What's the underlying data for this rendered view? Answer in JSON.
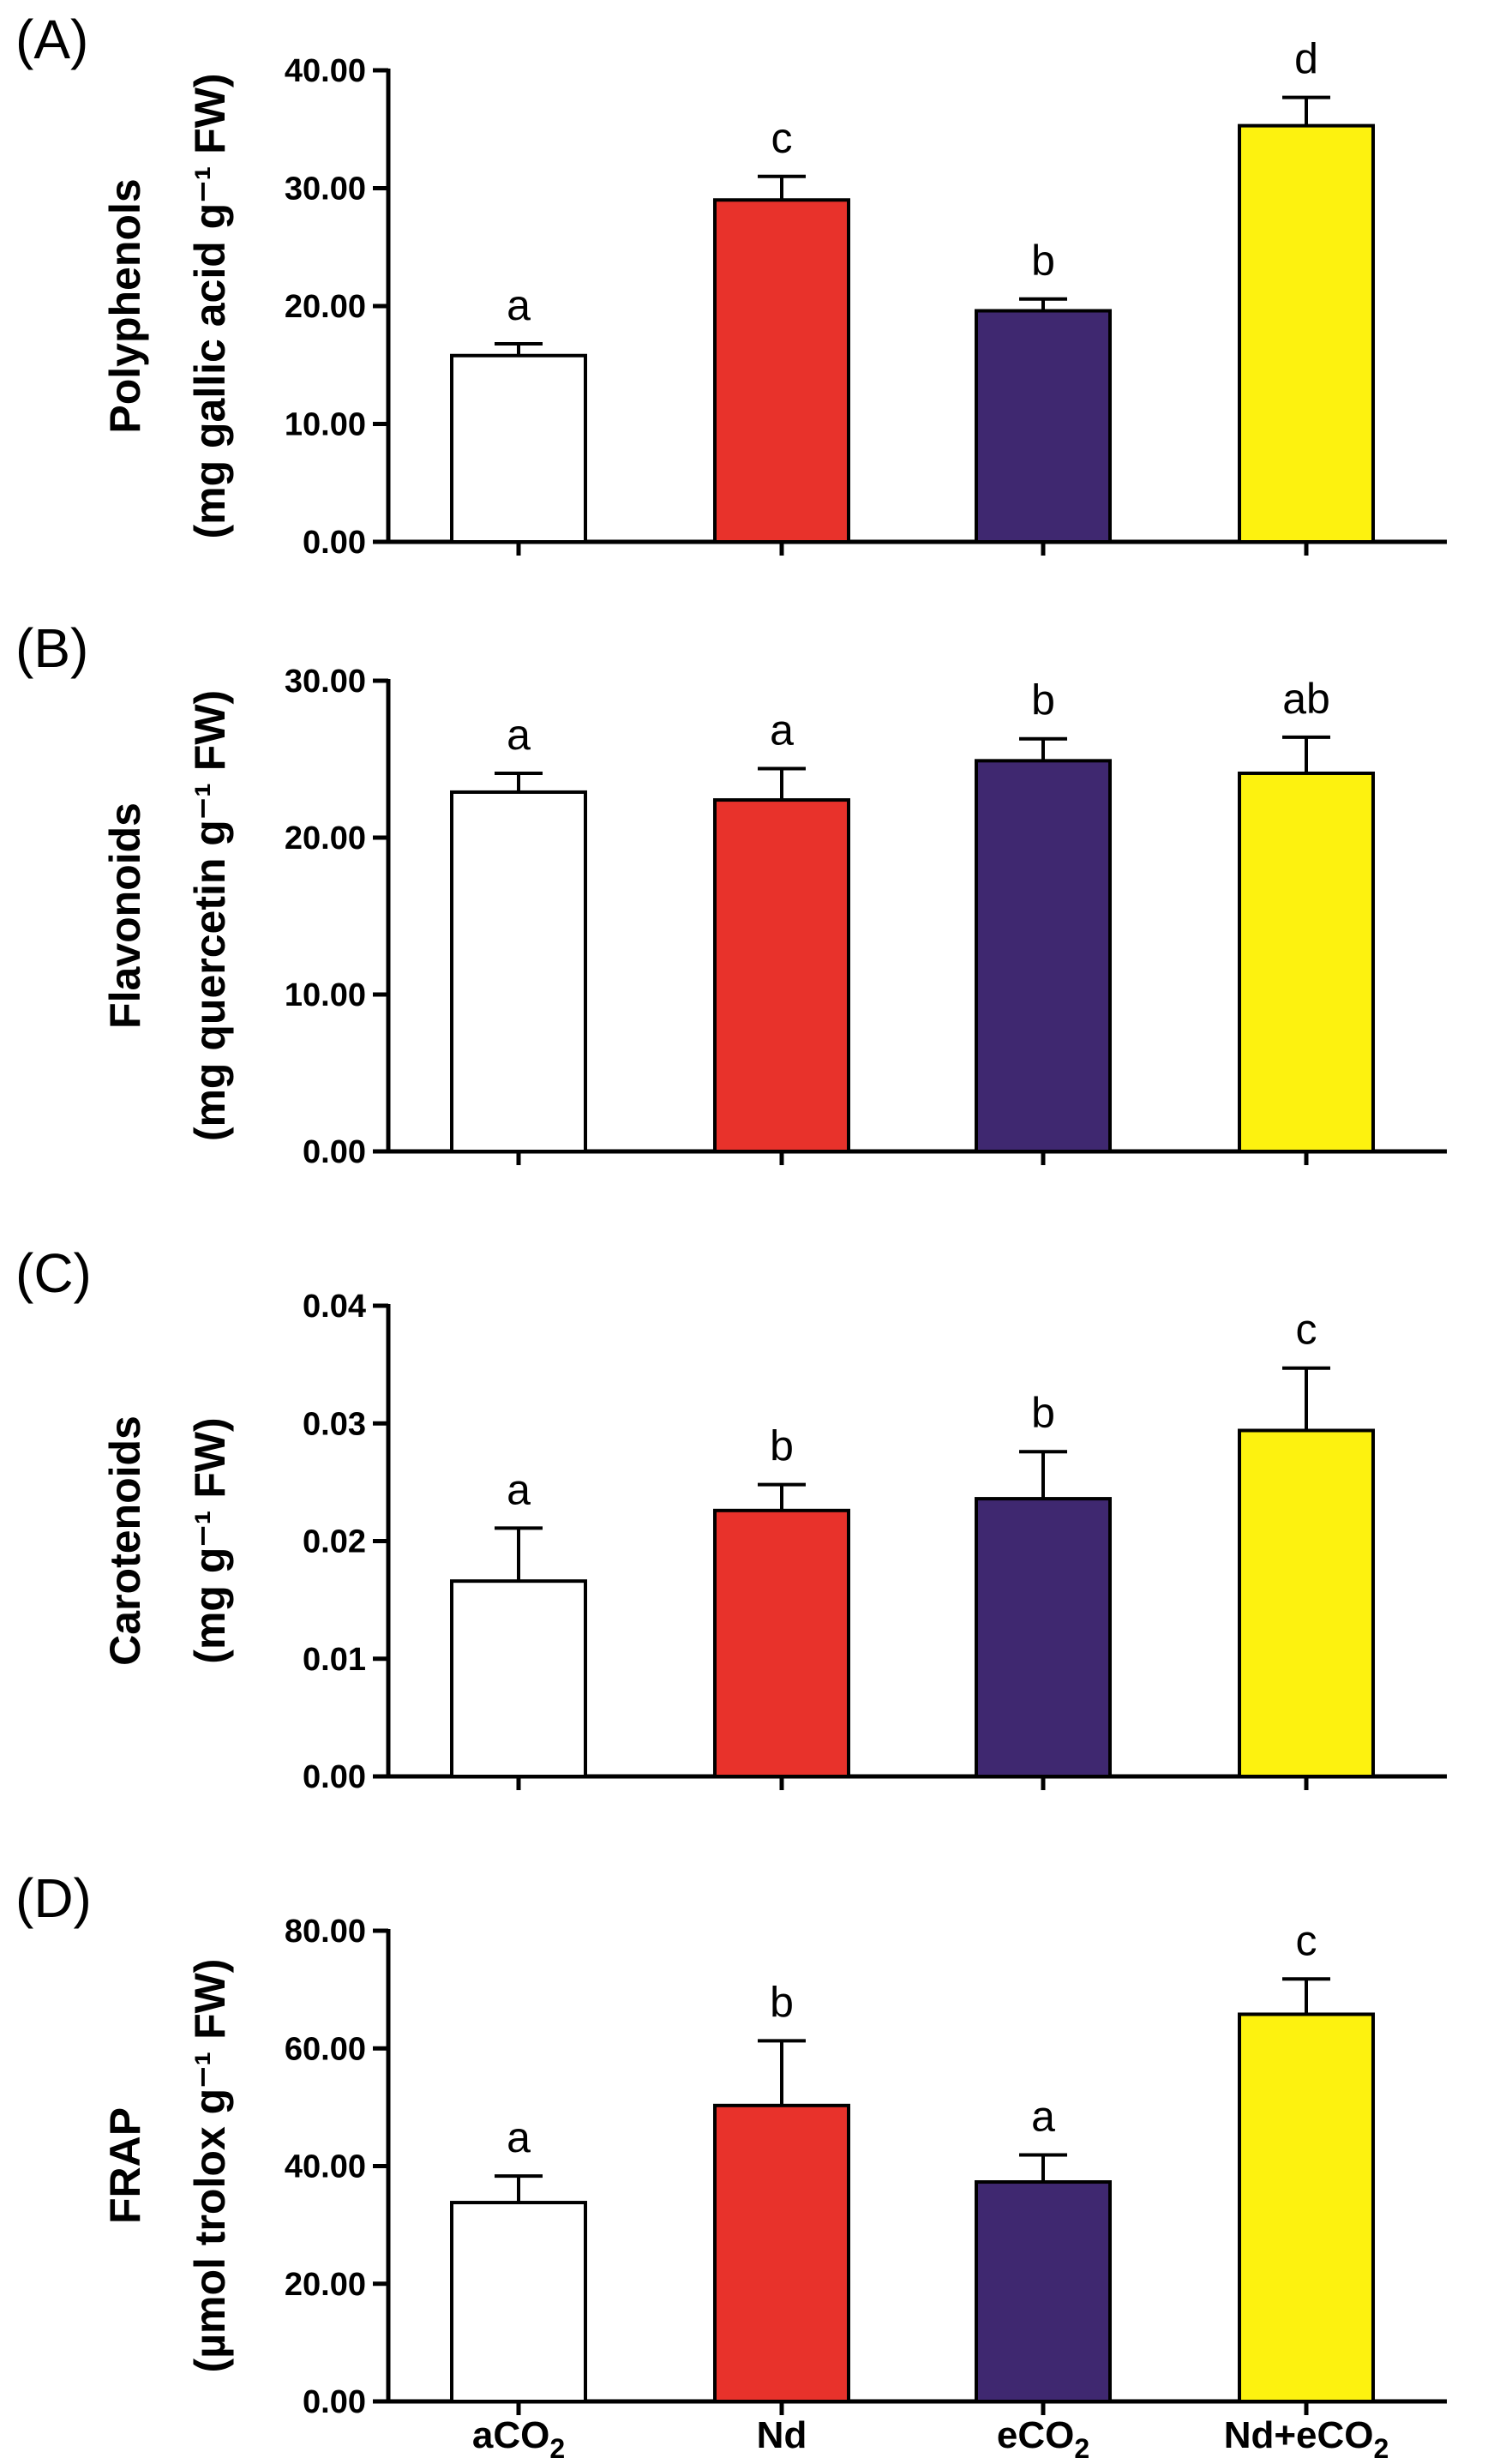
{
  "categories": [
    "aCO₂",
    "Nd",
    "eCO₂",
    "Nd+eCO₂"
  ],
  "category_parts": [
    {
      "main": "aCO",
      "sub": "2"
    },
    {
      "main": "Nd",
      "sub": ""
    },
    {
      "main": "eCO",
      "sub": "2"
    },
    {
      "main": "Nd+eCO",
      "sub": "2"
    }
  ],
  "colors": {
    "aCO2": "#ffffff",
    "Nd": "#e8322b",
    "eCO2": "#3f2870",
    "Nd_eCO2": "#fdf20f"
  },
  "chart_data": [
    {
      "type": "bar",
      "panel_label": "(A)",
      "ylabel_line1": "Polyphenols",
      "ylabel_line2": "(mg gallic acid g⁻¹ FW)",
      "ylim": [
        0,
        40
      ],
      "yticks": [
        0,
        10,
        20,
        30,
        40
      ],
      "tick_labels": [
        "0.00",
        "10.00",
        "20.00",
        "30.00",
        "40.00"
      ],
      "values": [
        15.8,
        29.0,
        19.6,
        35.3
      ],
      "errors": [
        1.0,
        2.0,
        1.0,
        2.4
      ],
      "letters": [
        "a",
        "c",
        "b",
        "d"
      ]
    },
    {
      "type": "bar",
      "panel_label": "(B)",
      "ylabel_line1": "Flavonoids",
      "ylabel_line2": "(mg quercetin g⁻¹ FW)",
      "ylim": [
        0,
        30
      ],
      "yticks": [
        0,
        10,
        20,
        30
      ],
      "tick_labels": [
        "0.00",
        "10.00",
        "20.00",
        "30.00"
      ],
      "values": [
        22.9,
        22.4,
        24.9,
        24.1
      ],
      "errors": [
        1.2,
        2.0,
        1.4,
        2.3
      ],
      "letters": [
        "a",
        "a",
        "b",
        "ab"
      ]
    },
    {
      "type": "bar",
      "panel_label": "(C)",
      "ylabel_line1": "Carotenoids",
      "ylabel_line2": "(mg g⁻¹ FW)",
      "ylim": [
        0,
        0.04
      ],
      "yticks": [
        0,
        0.01,
        0.02,
        0.03,
        0.04
      ],
      "tick_labels": [
        "0.00",
        "0.01",
        "0.02",
        "0.03",
        "0.04"
      ],
      "values": [
        0.0166,
        0.0226,
        0.0236,
        0.0294
      ],
      "errors": [
        0.0045,
        0.0022,
        0.004,
        0.0053
      ],
      "letters": [
        "a",
        "b",
        "b",
        "c"
      ]
    },
    {
      "type": "bar",
      "panel_label": "(D)",
      "ylabel_line1": "FRAP",
      "ylabel_line2": "(µmol trolox g⁻¹ FW)",
      "ylim": [
        0,
        80
      ],
      "yticks": [
        0,
        20,
        40,
        60,
        80
      ],
      "tick_labels": [
        "0.00",
        "20.00",
        "40.00",
        "60.00",
        "80.00"
      ],
      "values": [
        33.8,
        50.3,
        37.3,
        65.8
      ],
      "errors": [
        4.5,
        11.0,
        4.6,
        6.0
      ],
      "letters": [
        "a",
        "b",
        "a",
        "c"
      ]
    }
  ]
}
